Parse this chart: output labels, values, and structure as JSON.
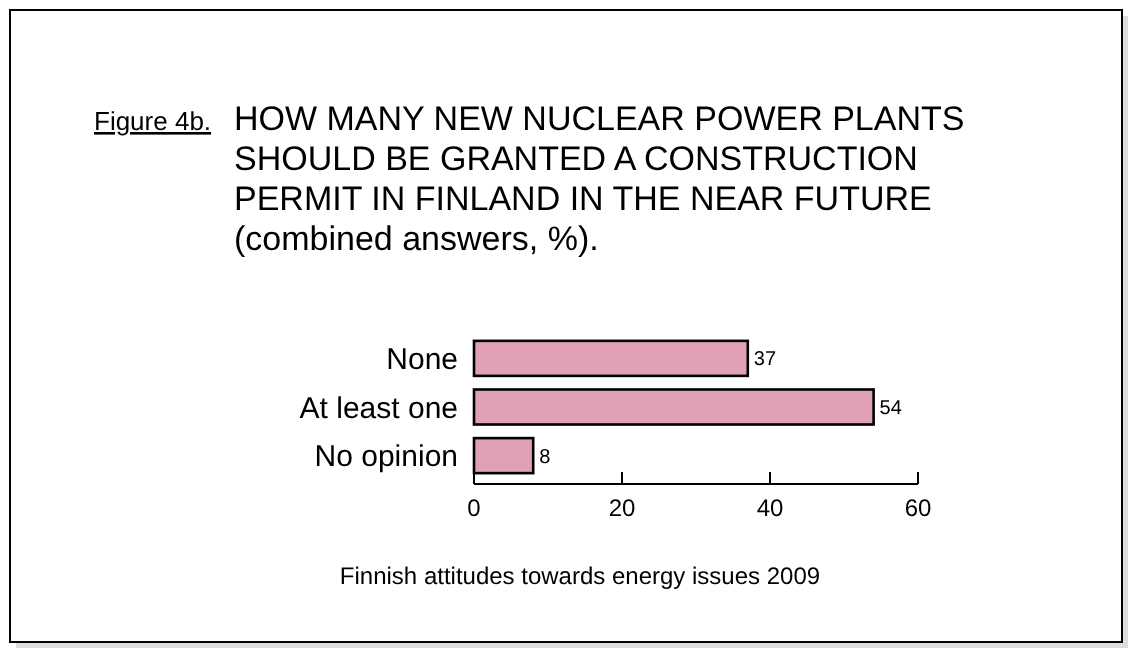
{
  "chart_data": {
    "type": "bar",
    "orientation": "horizontal",
    "title": "HOW MANY NEW NUCLEAR POWER PLANTS SHOULD BE GRANTED A CONSTRUCTION PERMIT IN FINLAND IN THE NEAR FUTURE (combined answers, %).",
    "annotations": [
      "Figure 4b.",
      "Finnish attitudes towards energy issues 2009"
    ],
    "categories": [
      "None",
      "At least one",
      "No opinion"
    ],
    "values": [
      37,
      54,
      8
    ],
    "color": "#e0a0b8",
    "data_labels": true,
    "xlim": [
      0,
      60
    ],
    "xticks": [
      0,
      20,
      40,
      60
    ]
  }
}
